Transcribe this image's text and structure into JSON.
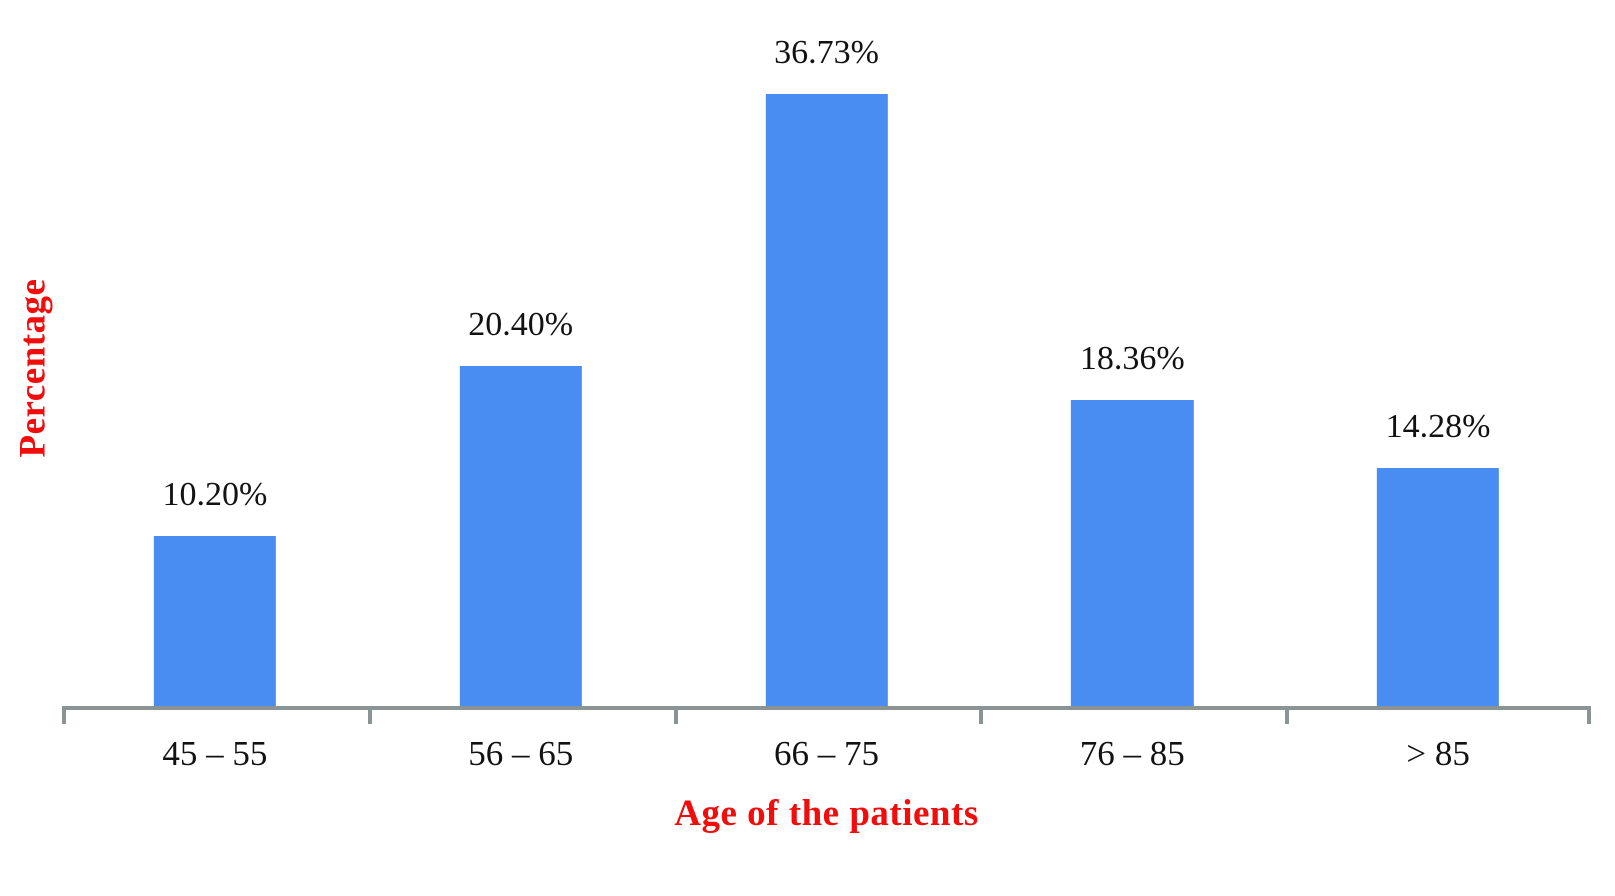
{
  "chart_data": {
    "type": "bar",
    "categories": [
      "45 – 55",
      "56 – 65",
      "66 – 75",
      "76 – 85",
      "> 85"
    ],
    "values": [
      10.2,
      20.4,
      36.73,
      18.36,
      14.28
    ],
    "value_labels": [
      "10.20%",
      "20.40%",
      "36.73%",
      "18.36%",
      "14.28%"
    ],
    "title": "",
    "xlabel": "Age of the patients",
    "ylabel": "Percentage",
    "ylim": [
      0,
      40
    ],
    "grid": false,
    "legend": false,
    "y_axis_ticks_visible": false,
    "colors": {
      "bar": "#4A8DF2",
      "axis": "#8A9494",
      "label_text": "#121212",
      "axis_title_accent": "#F20D0D"
    }
  }
}
